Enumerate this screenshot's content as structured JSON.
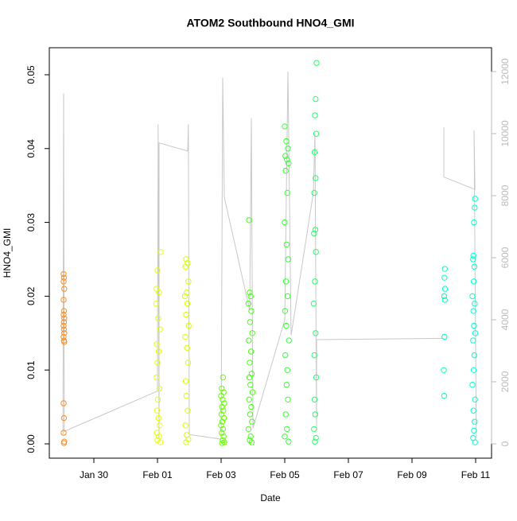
{
  "chart_data": {
    "type": "scatter",
    "title": "ATOM2 Southbound HNO4_GMI",
    "x_label": "Date",
    "y_label": "HNO4_GMI",
    "xlim": [
      -1.4,
      12.5
    ],
    "xticks": [
      {
        "value": 0,
        "label": "Jan 30"
      },
      {
        "value": 2,
        "label": "Feb 01"
      },
      {
        "value": 4,
        "label": "Feb 03"
      },
      {
        "value": 6,
        "label": "Feb 05"
      },
      {
        "value": 8,
        "label": "Feb 07"
      },
      {
        "value": 10,
        "label": "Feb 09"
      },
      {
        "value": 12,
        "label": "Feb 11"
      }
    ],
    "ylim": [
      -0.00194,
      0.05366
    ],
    "yticks": [
      {
        "value": 0,
        "label": "0.00"
      },
      {
        "value": 0.01,
        "label": "0.01"
      },
      {
        "value": 0.02,
        "label": "0.02"
      },
      {
        "value": 0.03,
        "label": "0.03"
      },
      {
        "value": 0.04,
        "label": "0.04"
      },
      {
        "value": 0.05,
        "label": "0.05"
      }
    ],
    "y2lim": [
      -462,
      12769
    ],
    "y2ticks": [
      0,
      2000,
      4000,
      6000,
      8000,
      10000,
      12000
    ],
    "series": [
      {
        "color": "#ff8c1a",
        "x": [
          -0.95,
          -0.94,
          -0.95,
          -0.93,
          -0.95,
          -0.94,
          -0.95,
          -0.93,
          -0.94,
          -0.95,
          -0.94,
          -0.93,
          -0.95,
          -0.94,
          -0.93,
          -0.95,
          -0.94,
          -0.95,
          -0.93,
          -0.94
        ],
        "values": [
          0.023,
          0.0225,
          0.022,
          0.021,
          0.0195,
          0.018,
          0.0175,
          0.017,
          0.0165,
          0.016,
          0.0155,
          0.015,
          0.0145,
          0.014,
          0.0138,
          0.0055,
          0.0035,
          0.0015,
          0.0003,
          0.0001
        ]
      },
      {
        "color": "#e6ff00",
        "x": [
          2.1,
          2.0,
          1.97,
          2.05,
          1.96,
          2.02,
          2.08,
          1.98,
          2.04,
          2.0,
          1.97,
          2.06,
          2.01,
          1.99,
          2.03,
          2.07,
          1.98,
          2.05,
          2.0,
          2.09
        ],
        "values": [
          0.026,
          0.0235,
          0.021,
          0.0205,
          0.019,
          0.017,
          0.0155,
          0.0135,
          0.0125,
          0.011,
          0.009,
          0.0075,
          0.006,
          0.0045,
          0.0035,
          0.0025,
          0.0015,
          0.001,
          0.0005,
          0.0002
        ]
      },
      {
        "color": "#d4ff00",
        "x": [
          2.9,
          2.95,
          2.88,
          2.97,
          2.92,
          2.86,
          2.94,
          2.9,
          2.98,
          2.87,
          2.93,
          2.96,
          2.89,
          2.91,
          2.95,
          2.88,
          2.92,
          2.97,
          2.9
        ],
        "values": [
          0.025,
          0.0245,
          0.024,
          0.022,
          0.0205,
          0.02,
          0.019,
          0.0175,
          0.016,
          0.0145,
          0.013,
          0.011,
          0.0085,
          0.0065,
          0.0045,
          0.0025,
          0.0012,
          0.0006,
          0.0002
        ]
      },
      {
        "color": "#66ff00",
        "x": [
          4.06,
          4.02,
          4.08,
          4.0,
          4.05,
          4.1,
          4.03,
          4.07,
          4.01,
          4.09,
          4.04,
          4.0,
          4.06,
          4.02,
          4.08,
          4.05,
          4.1,
          4.03
        ],
        "values": [
          0.009,
          0.0075,
          0.007,
          0.0065,
          0.006,
          0.0055,
          0.005,
          0.0045,
          0.004,
          0.0035,
          0.003,
          0.0025,
          0.002,
          0.0015,
          0.001,
          0.0005,
          0.0002,
          0.0001
        ]
      },
      {
        "color": "#44ff11",
        "x": [
          4.88,
          4.9,
          4.93,
          4.86,
          4.95,
          4.91,
          4.98,
          4.87,
          4.94,
          4.9,
          4.96,
          4.89,
          4.92,
          4.99,
          4.88,
          4.95,
          4.91,
          4.97,
          4.86,
          4.93,
          4.9,
          4.96
        ],
        "values": [
          0.0303,
          0.0205,
          0.02,
          0.019,
          0.018,
          0.0165,
          0.015,
          0.014,
          0.0125,
          0.011,
          0.0095,
          0.009,
          0.008,
          0.007,
          0.006,
          0.005,
          0.004,
          0.003,
          0.002,
          0.001,
          0.0005,
          0.0002
        ]
      },
      {
        "color": "#33ff33",
        "x": [
          6.0,
          6.05,
          6.1,
          6.02,
          6.07,
          6.12,
          6.03,
          6.08,
          6.0,
          6.06,
          6.11,
          6.04,
          6.09,
          6.01,
          6.05,
          6.13,
          6.02,
          6.08,
          6.06,
          6.1,
          6.03,
          6.07,
          6.0,
          6.12
        ],
        "values": [
          0.043,
          0.041,
          0.04,
          0.039,
          0.0385,
          0.038,
          0.037,
          0.034,
          0.03,
          0.027,
          0.025,
          0.022,
          0.02,
          0.018,
          0.016,
          0.014,
          0.012,
          0.01,
          0.008,
          0.006,
          0.004,
          0.002,
          0.001,
          0.0003
        ]
      },
      {
        "color": "#22ff66",
        "x": [
          7.0,
          6.97,
          6.95,
          6.99,
          6.94,
          6.97,
          6.93,
          6.96,
          6.92,
          6.98,
          6.95,
          6.91,
          6.97,
          6.93,
          6.99,
          6.94,
          6.96,
          6.92,
          6.98,
          6.95
        ],
        "values": [
          0.0516,
          0.0467,
          0.0445,
          0.042,
          0.0395,
          0.036,
          0.034,
          0.029,
          0.0285,
          0.026,
          0.022,
          0.019,
          0.015,
          0.012,
          0.009,
          0.006,
          0.004,
          0.002,
          0.0008,
          0.0003
        ]
      },
      {
        "color": "#00ffbb",
        "x": [
          11.03,
          11.02,
          11.04,
          11.01,
          11.03,
          11.02,
          11.0,
          11.01
        ],
        "values": [
          0.0237,
          0.0225,
          0.021,
          0.02,
          0.0195,
          0.0145,
          0.01,
          0.0065
        ]
      },
      {
        "color": "#00ffcc",
        "x": [
          11.98,
          11.97,
          11.95,
          11.93,
          11.92,
          11.96,
          11.94,
          11.9,
          11.97,
          11.93,
          11.95,
          11.99,
          11.92,
          11.96,
          11.94,
          11.9,
          11.98,
          11.93,
          11.97,
          11.95,
          11.92,
          11.98
        ],
        "values": [
          0.0332,
          0.032,
          0.03,
          0.0255,
          0.025,
          0.024,
          0.022,
          0.02,
          0.019,
          0.018,
          0.016,
          0.015,
          0.014,
          0.012,
          0.01,
          0.008,
          0.006,
          0.0045,
          0.003,
          0.0018,
          0.0008,
          0.0002
        ]
      },
      {
        "type": "line",
        "axis": "y2",
        "color": "#c8c8c8",
        "x": [
          -0.97,
          -0.95,
          -0.93,
          2.0,
          2.02,
          2.05,
          2.05,
          2.95,
          2.97,
          3.0,
          4.0,
          4.05,
          4.1,
          4.9,
          4.95,
          5.0,
          6.0,
          6.1,
          6.2,
          6.9,
          6.95,
          7.0,
          7.0,
          11.0,
          null,
          11.0,
          11.0,
          11.98,
          11.95,
          12.02
        ],
        "values": [
          300,
          11300,
          400,
          1700,
          10300,
          200,
          9700,
          9440,
          10300,
          300,
          150,
          11800,
          7950,
          4300,
          10500,
          500,
          4000,
          12000,
          3500,
          8100,
          10000,
          500,
          3360,
          3400,
          null,
          10200,
          8600,
          8200,
          10100,
          200
        ]
      }
    ]
  }
}
